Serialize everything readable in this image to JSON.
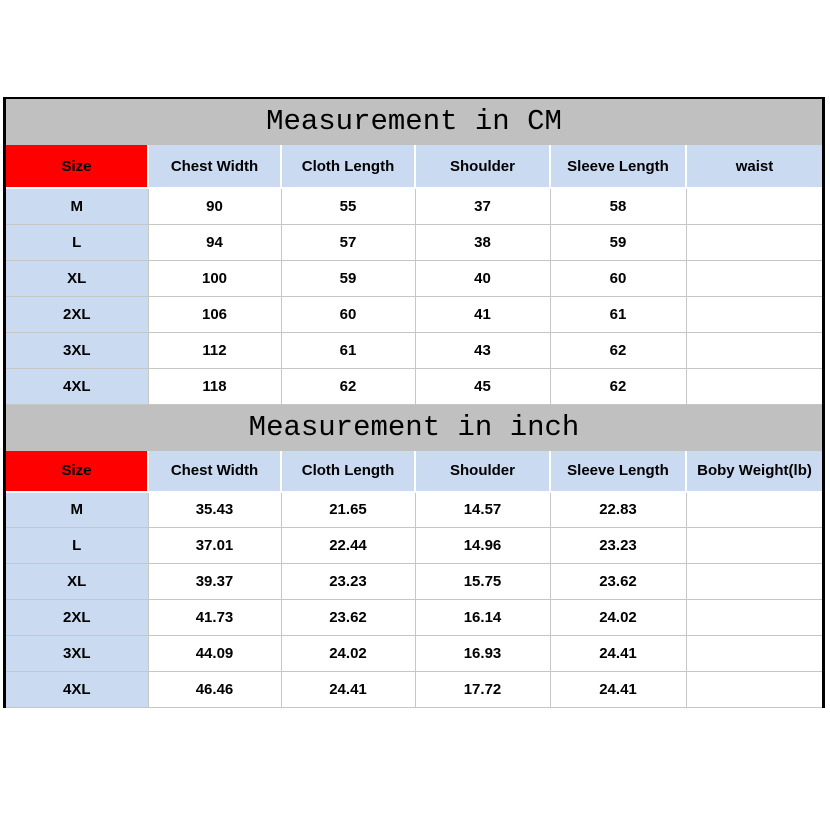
{
  "colors": {
    "title_bar_bg": "#c0c0c0",
    "size_header_bg": "#ff0000",
    "header_cell_bg": "#c9daf1",
    "size_cell_bg": "#c9daf1",
    "grid_line": "#c6c6c6",
    "outer_border": "#000000"
  },
  "cm_table": {
    "title": "Measurement in CM",
    "columns": [
      "Size",
      "Chest Width",
      "Cloth Length",
      "Shoulder",
      "Sleeve Length",
      "waist"
    ],
    "rows": [
      {
        "size": "M",
        "values": [
          "90",
          "55",
          "37",
          "58",
          ""
        ]
      },
      {
        "size": "L",
        "values": [
          "94",
          "57",
          "38",
          "59",
          ""
        ]
      },
      {
        "size": "XL",
        "values": [
          "100",
          "59",
          "40",
          "60",
          ""
        ]
      },
      {
        "size": "2XL",
        "values": [
          "106",
          "60",
          "41",
          "61",
          ""
        ]
      },
      {
        "size": "3XL",
        "values": [
          "112",
          "61",
          "43",
          "62",
          ""
        ]
      },
      {
        "size": "4XL",
        "values": [
          "118",
          "62",
          "45",
          "62",
          ""
        ]
      }
    ]
  },
  "inch_table": {
    "title": "Measurement in inch",
    "columns": [
      "Size",
      "Chest Width",
      "Cloth Length",
      "Shoulder",
      "Sleeve Length",
      "Boby Weight(lb)"
    ],
    "rows": [
      {
        "size": "M",
        "values": [
          "35.43",
          "21.65",
          "14.57",
          "22.83",
          ""
        ]
      },
      {
        "size": "L",
        "values": [
          "37.01",
          "22.44",
          "14.96",
          "23.23",
          ""
        ]
      },
      {
        "size": "XL",
        "values": [
          "39.37",
          "23.23",
          "15.75",
          "23.62",
          ""
        ]
      },
      {
        "size": "2XL",
        "values": [
          "41.73",
          "23.62",
          "16.14",
          "24.02",
          ""
        ]
      },
      {
        "size": "3XL",
        "values": [
          "44.09",
          "24.02",
          "16.93",
          "24.41",
          ""
        ]
      },
      {
        "size": "4XL",
        "values": [
          "46.46",
          "24.41",
          "17.72",
          "24.41",
          ""
        ]
      }
    ]
  }
}
